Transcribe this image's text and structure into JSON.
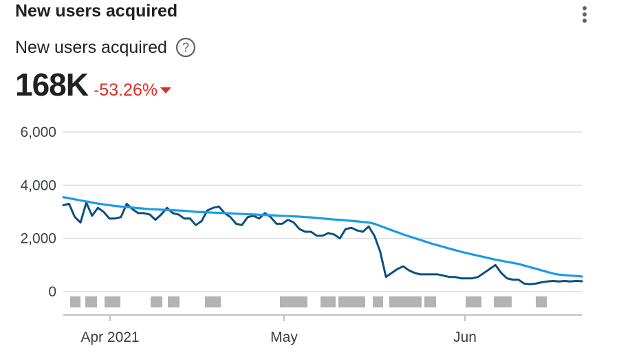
{
  "card": {
    "title": "New users acquired",
    "metric_label": "New users acquired",
    "value": "168K",
    "change": "-53.26%",
    "change_direction": "down",
    "change_color": "#d93025",
    "icons": {
      "help": "help-circle-icon",
      "more": "more-vert-icon",
      "change": "triangle-down-icon"
    }
  },
  "chart_data": {
    "type": "line",
    "y_ticks": [
      "6,000",
      "4,000",
      "2,000",
      "0"
    ],
    "x_ticks": [
      "Apr 2021",
      "May",
      "Jun"
    ],
    "ylim": [
      0,
      6000
    ],
    "grid": true,
    "colors": {
      "daily": "#0b4f7c",
      "trend": "#1a9be6"
    },
    "series": [
      {
        "values": [
          3250,
          3300,
          2800,
          2600,
          3350,
          2850,
          3150,
          3000,
          2750,
          2750,
          2800,
          3300,
          3100,
          2950,
          2950,
          2900,
          2700,
          2900,
          3150,
          2950,
          2900,
          2750,
          2750,
          2500,
          2650,
          3050,
          3150,
          3200,
          2950,
          2800,
          2550,
          2500,
          2800,
          2850,
          2750,
          2950,
          2800,
          2550,
          2550,
          2700,
          2600,
          2350,
          2250,
          2250,
          2100,
          2100,
          2200,
          2150,
          2000,
          2350,
          2400,
          2300,
          2250,
          2450,
          2100,
          1500,
          550,
          700,
          850,
          950,
          800,
          700,
          650,
          650,
          650,
          650,
          600,
          550,
          550,
          500,
          500,
          500,
          550,
          700,
          850,
          1000,
          700,
          500,
          450,
          450,
          300,
          280,
          300,
          350,
          380,
          400,
          380,
          400,
          380,
          400,
          390
        ]
      },
      {
        "values": [
          3550,
          3510,
          3470,
          3430,
          3390,
          3350,
          3310,
          3280,
          3250,
          3220,
          3200,
          3180,
          3160,
          3140,
          3120,
          3100,
          3090,
          3080,
          3070,
          3060,
          3050,
          3040,
          3020,
          3000,
          2990,
          2980,
          2970,
          2960,
          2950,
          2940,
          2930,
          2920,
          2910,
          2900,
          2890,
          2880,
          2870,
          2860,
          2850,
          2840,
          2830,
          2820,
          2800,
          2790,
          2770,
          2750,
          2730,
          2710,
          2700,
          2680,
          2660,
          2640,
          2620,
          2600,
          2550,
          2470,
          2390,
          2310,
          2230,
          2150,
          2080,
          2010,
          1940,
          1870,
          1800,
          1740,
          1680,
          1620,
          1560,
          1500,
          1450,
          1400,
          1350,
          1300,
          1250,
          1200,
          1160,
          1120,
          1080,
          1040,
          980,
          920,
          860,
          800,
          740,
          680,
          640,
          620,
          600,
          590,
          570
        ]
      }
    ]
  }
}
